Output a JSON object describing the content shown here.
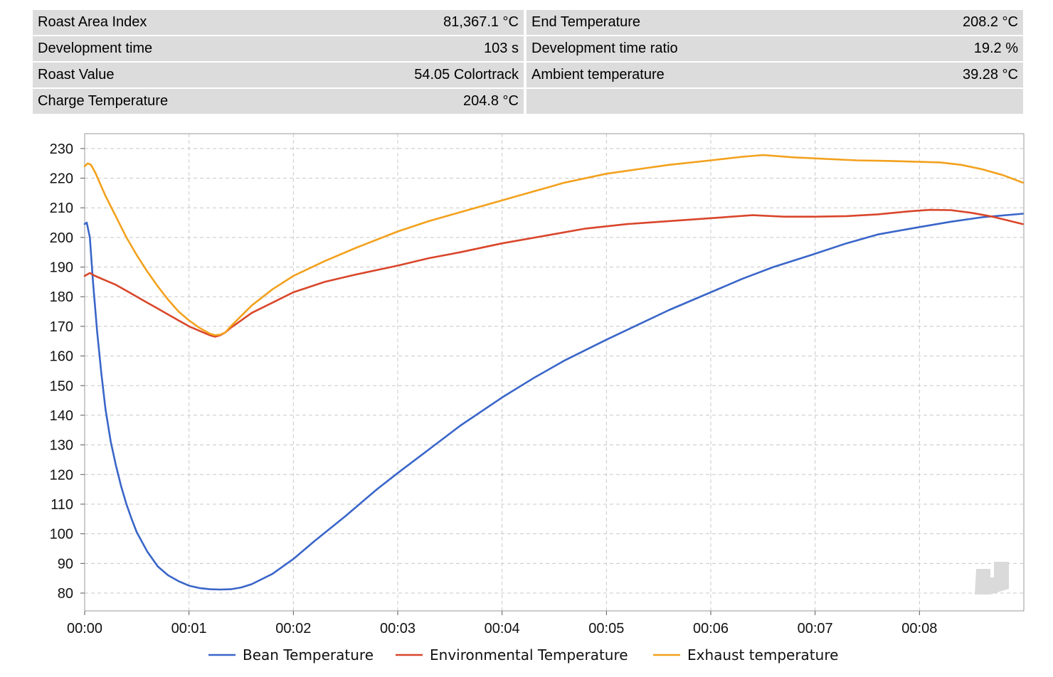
{
  "stats": [
    {
      "label": "Roast Area Index",
      "value": "81,367.1 °C"
    },
    {
      "label": "End Temperature",
      "value": "208.2 °C"
    },
    {
      "label": "Development time",
      "value": "103 s"
    },
    {
      "label": "Development time ratio",
      "value": "19.2 %"
    },
    {
      "label": "Roast Value",
      "value": "54.05 Colortrack"
    },
    {
      "label": "Ambient temperature",
      "value": "39.28 °C"
    },
    {
      "label": "Charge Temperature",
      "value": "204.8 °C"
    },
    {
      "label": "",
      "value": ""
    }
  ],
  "chart_data": {
    "type": "line",
    "x_unit": "minutes",
    "x_ticks": [
      "00:00",
      "00:01",
      "00:02",
      "00:03",
      "00:04",
      "00:05",
      "00:06",
      "00:07",
      "00:08"
    ],
    "y_ticks": [
      80,
      90,
      100,
      110,
      120,
      130,
      140,
      150,
      160,
      170,
      180,
      190,
      200,
      210,
      220,
      230
    ],
    "xlim": [
      0,
      9
    ],
    "ylim": [
      74,
      235
    ],
    "grid": true,
    "legend_position": "bottom-center",
    "series": [
      {
        "name": "Bean Temperature",
        "color": "#3a66c9",
        "x": [
          0,
          0.02,
          0.05,
          0.08,
          0.12,
          0.16,
          0.2,
          0.25,
          0.3,
          0.35,
          0.4,
          0.45,
          0.5,
          0.6,
          0.7,
          0.8,
          0.9,
          1.0,
          1.1,
          1.2,
          1.3,
          1.4,
          1.5,
          1.6,
          1.8,
          2.0,
          2.2,
          2.5,
          2.8,
          3.0,
          3.3,
          3.6,
          4.0,
          4.3,
          4.6,
          5.0,
          5.3,
          5.6,
          6.0,
          6.3,
          6.6,
          7.0,
          7.3,
          7.6,
          8.0,
          8.3,
          8.6,
          8.99
        ],
        "values": [
          204.5,
          205,
          200,
          185,
          168,
          154,
          142,
          131,
          123,
          116,
          110,
          105,
          100.5,
          94,
          89,
          86,
          84,
          82.5,
          81.7,
          81.3,
          81.2,
          81.3,
          81.9,
          83,
          86.5,
          91.5,
          97.5,
          106,
          115,
          120.5,
          128.5,
          136.5,
          146,
          152.5,
          158.5,
          165.5,
          170.5,
          175.5,
          181.5,
          186,
          190,
          194.5,
          198,
          201,
          203.5,
          205.3,
          206.8,
          208
        ]
      },
      {
        "name": "Environmental Temperature",
        "color": "#d9462b",
        "x": [
          0,
          0.05,
          0.1,
          0.2,
          0.3,
          0.4,
          0.5,
          0.6,
          0.7,
          0.8,
          0.9,
          1.0,
          1.1,
          1.2,
          1.25,
          1.3,
          1.35,
          1.4,
          1.5,
          1.6,
          1.8,
          2.0,
          2.3,
          2.6,
          3.0,
          3.3,
          3.6,
          4.0,
          4.4,
          4.8,
          5.2,
          5.6,
          6.0,
          6.4,
          6.7,
          7.0,
          7.3,
          7.6,
          7.9,
          8.1,
          8.3,
          8.5,
          8.7,
          8.99
        ],
        "values": [
          187,
          188,
          187,
          185.5,
          184,
          182,
          180,
          178,
          176,
          174,
          172,
          170,
          168.5,
          167,
          166.5,
          167,
          168,
          169.5,
          172,
          174.5,
          178,
          181.5,
          185,
          187.5,
          190.5,
          193,
          195,
          198,
          200.5,
          203,
          204.5,
          205.5,
          206.5,
          207.5,
          207,
          207,
          207.2,
          207.8,
          208.8,
          209.3,
          209.2,
          208.3,
          207,
          204.5
        ]
      },
      {
        "name": "Exhaust temperature",
        "color": "#f3a11d",
        "x": [
          0,
          0.03,
          0.06,
          0.1,
          0.15,
          0.2,
          0.3,
          0.4,
          0.5,
          0.6,
          0.7,
          0.8,
          0.9,
          1.0,
          1.1,
          1.2,
          1.25,
          1.3,
          1.35,
          1.4,
          1.5,
          1.6,
          1.8,
          2.0,
          2.3,
          2.6,
          3.0,
          3.3,
          3.6,
          4.0,
          4.3,
          4.6,
          5.0,
          5.3,
          5.6,
          6.0,
          6.3,
          6.5,
          6.8,
          7.1,
          7.4,
          7.7,
          8.0,
          8.2,
          8.4,
          8.6,
          8.8,
          8.99
        ],
        "values": [
          224,
          225,
          224.5,
          222,
          218,
          214,
          207,
          200,
          194,
          188.5,
          183.5,
          179,
          175,
          172,
          169.5,
          167.5,
          167,
          167.2,
          168,
          170,
          173.5,
          177,
          182.5,
          187,
          192,
          196.5,
          202,
          205.5,
          208.5,
          212.5,
          215.5,
          218.5,
          221.5,
          223,
          224.5,
          226,
          227.2,
          227.8,
          227,
          226.5,
          226,
          225.8,
          225.5,
          225.3,
          224.5,
          223,
          221,
          218.5
        ]
      }
    ]
  }
}
